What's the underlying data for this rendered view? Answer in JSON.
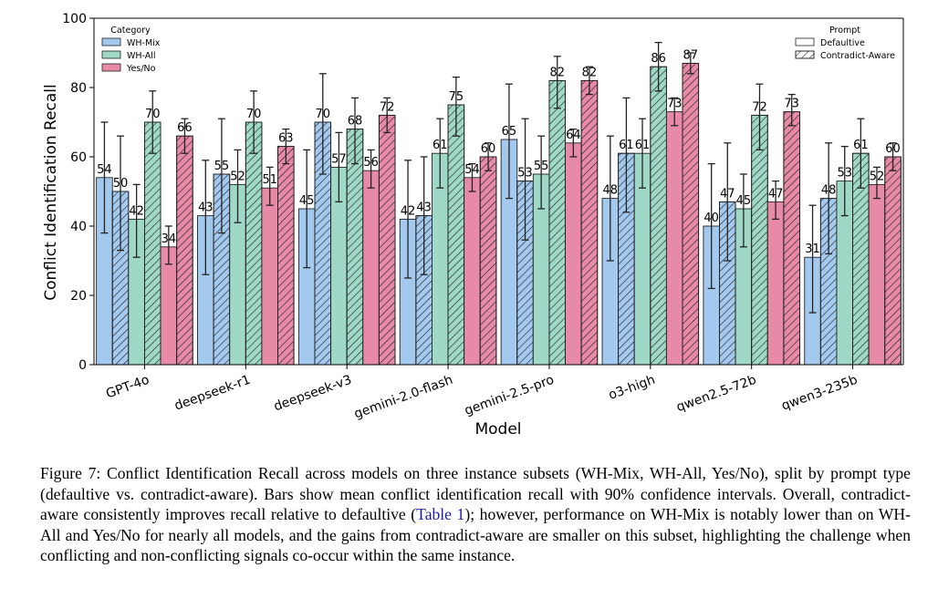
{
  "chart_data": {
    "type": "bar",
    "title": "",
    "xlabel": "Model",
    "ylabel": "Conflict Identification Recall",
    "ylim": [
      0,
      100
    ],
    "yticks": [
      0,
      20,
      40,
      60,
      80,
      100
    ],
    "grid": false,
    "categories": [
      "GPT-4o",
      "deepseek-r1",
      "deepseek-v3",
      "gemini-2.0-flash",
      "gemini-2.5-pro",
      "o3-high",
      "qwen2.5-72b",
      "qwen3-235b"
    ],
    "category_legend": {
      "title": "Category",
      "placement": "top-left",
      "entries": [
        {
          "name": "WH-Mix",
          "color": "#a4c9ef"
        },
        {
          "name": "WH-All",
          "color": "#9fd8c6"
        },
        {
          "name": "Yes/No",
          "color": "#e68aa6"
        }
      ]
    },
    "prompt_legend": {
      "title": "Prompt",
      "placement": "top-right",
      "entries": [
        {
          "name": "Defaultive",
          "hatch": false
        },
        {
          "name": "Contradict-Aware",
          "hatch": true
        }
      ]
    },
    "series": [
      {
        "category": "WH-Mix",
        "prompt": "Defaultive",
        "color": "#a4c9ef",
        "hatch": false,
        "values": [
          54,
          43,
          45,
          42,
          65,
          48,
          40,
          31
        ],
        "ci_low": [
          38,
          26,
          28,
          25,
          48,
          30,
          22,
          15
        ],
        "ci_high": [
          70,
          59,
          62,
          59,
          81,
          66,
          58,
          46
        ]
      },
      {
        "category": "WH-Mix",
        "prompt": "Contradict-Aware",
        "color": "#a4c9ef",
        "hatch": true,
        "values": [
          50,
          55,
          70,
          43,
          53,
          61,
          47,
          48
        ],
        "ci_low": [
          33,
          38,
          55,
          26,
          36,
          44,
          30,
          32
        ],
        "ci_high": [
          66,
          71,
          84,
          60,
          71,
          77,
          64,
          64
        ]
      },
      {
        "category": "WH-All",
        "prompt": "Defaultive",
        "color": "#9fd8c6",
        "hatch": false,
        "values": [
          42,
          52,
          57,
          61,
          55,
          61,
          45,
          53
        ],
        "ci_low": [
          31,
          41,
          47,
          51,
          45,
          51,
          34,
          43
        ],
        "ci_high": [
          52,
          62,
          67,
          71,
          66,
          71,
          55,
          63
        ]
      },
      {
        "category": "WH-All",
        "prompt": "Contradict-Aware",
        "color": "#9fd8c6",
        "hatch": true,
        "values": [
          70,
          70,
          68,
          75,
          82,
          86,
          72,
          61
        ],
        "ci_low": [
          61,
          61,
          58,
          66,
          74,
          79,
          62,
          51
        ],
        "ci_high": [
          79,
          79,
          77,
          83,
          89,
          93,
          81,
          71
        ]
      },
      {
        "category": "Yes/No",
        "prompt": "Defaultive",
        "color": "#e68aa6",
        "hatch": false,
        "values": [
          34,
          51,
          56,
          54,
          64,
          73,
          47,
          52
        ],
        "ci_low": [
          29,
          46,
          51,
          50,
          60,
          69,
          42,
          48
        ],
        "ci_high": [
          40,
          57,
          62,
          58,
          68,
          77,
          53,
          57
        ]
      },
      {
        "category": "Yes/No",
        "prompt": "Contradict-Aware",
        "color": "#e68aa6",
        "hatch": true,
        "values": [
          66,
          63,
          72,
          60,
          82,
          87,
          73,
          60
        ],
        "ci_low": [
          61,
          58,
          67,
          56,
          78,
          84,
          69,
          56
        ],
        "ci_high": [
          71,
          68,
          77,
          64,
          86,
          90,
          78,
          64
        ]
      }
    ]
  },
  "caption": {
    "label": "Figure 7:",
    "text_before_link": "Conflict Identification Recall across models on three instance subsets (WH-Mix, WH-All, Yes/No), split by prompt type (defaultive vs. contradict-aware). Bars show mean conflict identification recall with 90% confidence intervals. Overall, contradict-aware consistently improves recall relative to defaultive (",
    "link_text": "Table 1",
    "text_after_link": "); however, performance on WH-Mix is notably lower than on WH-All and Yes/No for nearly all models, and the gains from contradict-aware are smaller on this subset, highlighting the challenge when conflicting and non-conflicting signals co-occur within the same instance."
  }
}
